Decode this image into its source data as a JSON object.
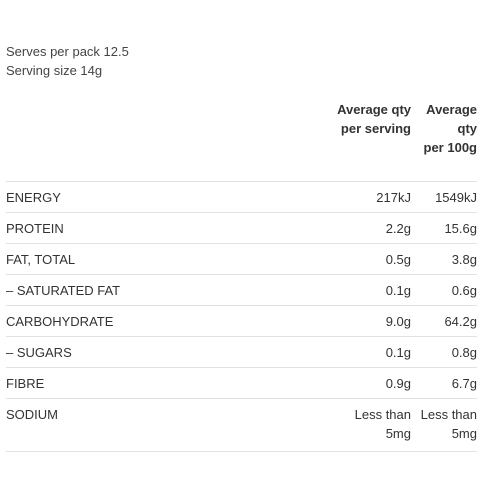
{
  "serves": {
    "per_pack": "Serves per pack 12.5",
    "serving_size": "Serving size 14g"
  },
  "table": {
    "headers": {
      "name": "",
      "per_serving": "Average qty\nper serving",
      "per_100g": "Average\nqty\nper 100g"
    },
    "rows": [
      {
        "name": "ENERGY",
        "per_serving": "217kJ",
        "per_100g": "1549kJ"
      },
      {
        "name": "PROTEIN",
        "per_serving": "2.2g",
        "per_100g": "15.6g"
      },
      {
        "name": "FAT, TOTAL",
        "per_serving": "0.5g",
        "per_100g": "3.8g"
      },
      {
        "name": "– SATURATED FAT",
        "per_serving": "0.1g",
        "per_100g": "0.6g"
      },
      {
        "name": "CARBOHYDRATE",
        "per_serving": "9.0g",
        "per_100g": "64.2g"
      },
      {
        "name": "– SUGARS",
        "per_serving": "0.1g",
        "per_100g": "0.8g"
      },
      {
        "name": "FIBRE",
        "per_serving": "0.9g",
        "per_100g": "6.7g"
      },
      {
        "name": "SODIUM",
        "per_serving": "Less than\n5mg",
        "per_100g": "Less than\n5mg"
      }
    ]
  }
}
